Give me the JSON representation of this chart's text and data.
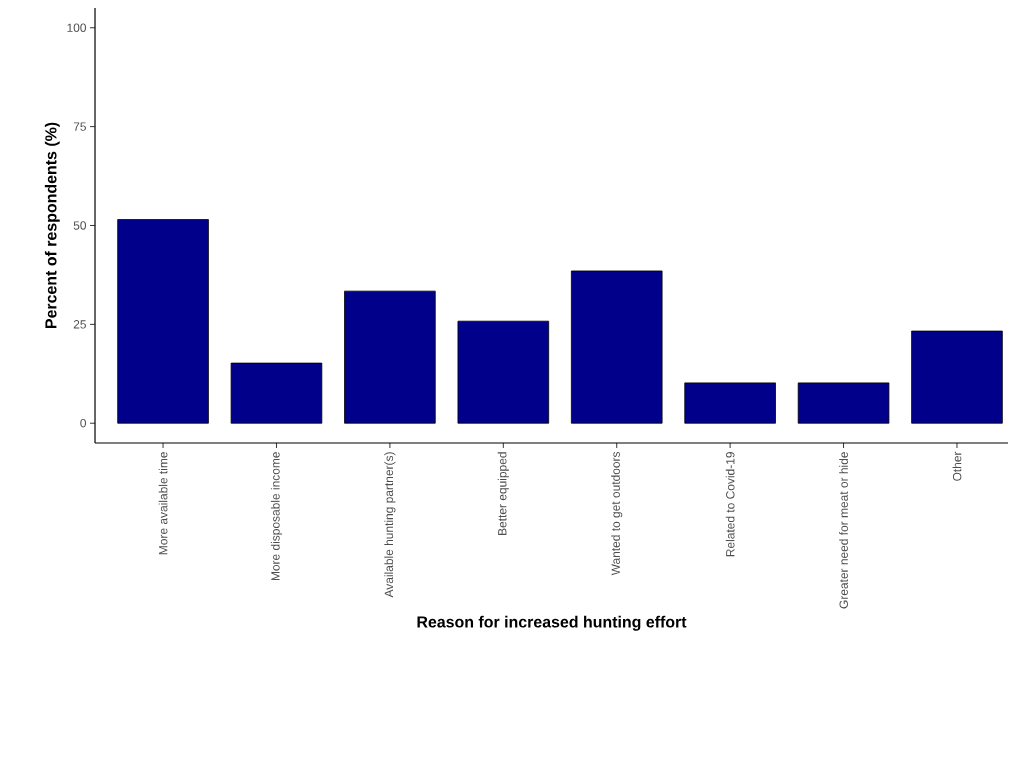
{
  "chart_data": {
    "type": "bar",
    "categories": [
      "More available time",
      "More disposable income",
      "Available hunting partner(s)",
      "Better equipped",
      "Wanted to get outdoors",
      "Related to Covid-19",
      "Greater need for meat or hide",
      "Other"
    ],
    "values": [
      51.5,
      15.2,
      33.4,
      25.8,
      38.5,
      10.2,
      10.2,
      23.3
    ],
    "color": "#00008b",
    "xlabel": "Reason for increased hunting effort",
    "ylabel": "Percent of respondents (%)",
    "ylim": [
      -5,
      105
    ],
    "yticks": [
      0,
      25,
      50,
      75,
      100
    ]
  }
}
